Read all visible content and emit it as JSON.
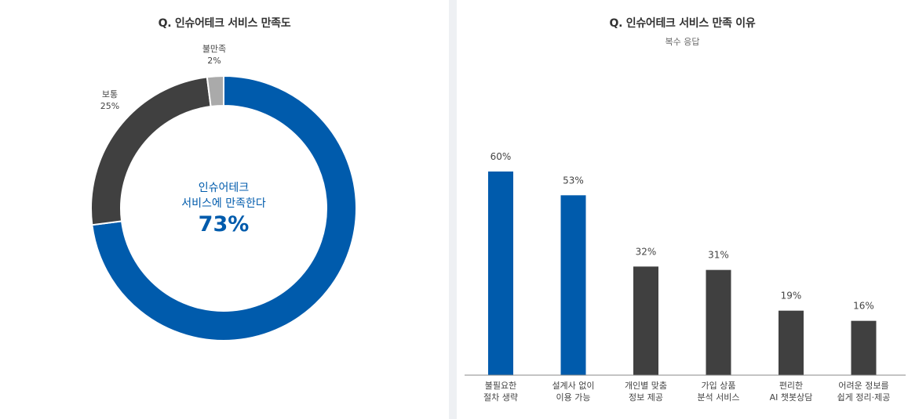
{
  "donut": {
    "title": "Q. 인슈어테크 서비스 만족도",
    "center_line1": "인슈어테크",
    "center_line2": "서비스에 만족한다",
    "center_value": "73%"
  },
  "bars": {
    "title": "Q. 인슈어테크 서비스 만족 이유",
    "subtitle": "복수 응답"
  },
  "colors": {
    "blue": "#005bac",
    "dark": "#404040",
    "gray": "#aaaaaa",
    "axis": "#888888"
  },
  "chart_data": [
    {
      "type": "pie",
      "title": "Q. 인슈어테크 서비스 만족도",
      "labels": [
        "만족",
        "보통",
        "불만족"
      ],
      "values": [
        73,
        25,
        2
      ],
      "display_labels": [
        "",
        "보통",
        "불만족"
      ],
      "display_values": [
        "",
        "25%",
        "2%"
      ],
      "colors": [
        "#005bac",
        "#404040",
        "#aaaaaa"
      ]
    },
    {
      "type": "bar",
      "title": "Q. 인슈어테크 서비스 만족 이유",
      "subtitle": "복수 응답",
      "categories": [
        [
          "불필요한",
          "절차 생략"
        ],
        [
          "설계사 없이",
          "이용 가능"
        ],
        [
          "개인별 맞춤",
          "정보 제공"
        ],
        [
          "가입 상품",
          "분석 서비스"
        ],
        [
          "편리한",
          "AI 챗봇상담"
        ],
        [
          "어려운 정보를",
          "쉽게 정리·제공"
        ]
      ],
      "values": [
        60,
        53,
        32,
        31,
        19,
        16
      ],
      "value_labels": [
        "60%",
        "53%",
        "32%",
        "31%",
        "19%",
        "16%"
      ],
      "colors": [
        "#005bac",
        "#005bac",
        "#404040",
        "#404040",
        "#404040",
        "#404040"
      ],
      "ylim": [
        0,
        60
      ]
    }
  ]
}
